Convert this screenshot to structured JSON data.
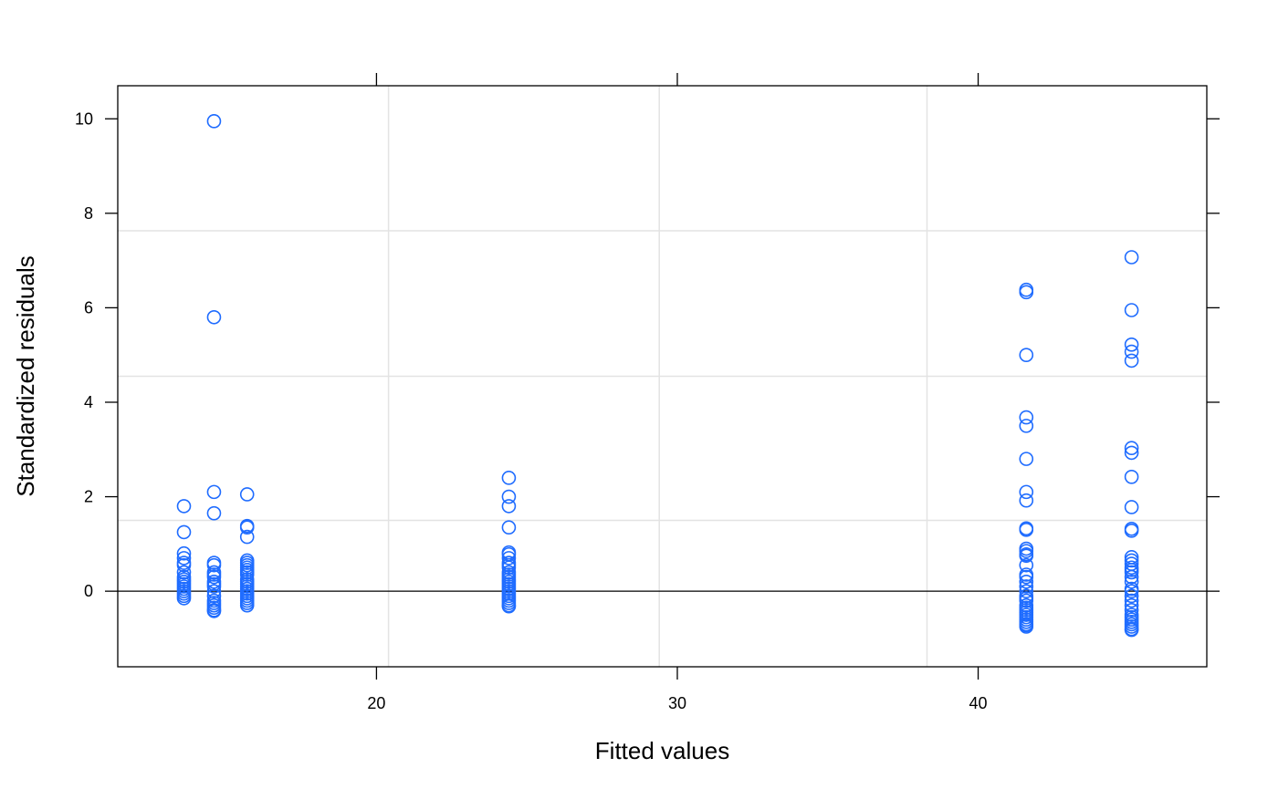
{
  "chart_data": {
    "type": "scatter",
    "title": "",
    "xlabel": "Fitted values",
    "ylabel": "Standardized residuals",
    "xlim": [
      11.4,
      47.6
    ],
    "ylim": [
      -1.6,
      10.7
    ],
    "xticks": [
      20,
      30,
      40
    ],
    "yticks": [
      0,
      2,
      4,
      6,
      8,
      10
    ],
    "xtick_labels": [
      "20",
      "30",
      "40"
    ],
    "ytick_labels": [
      "0",
      "2",
      "4",
      "6",
      "8",
      "10"
    ],
    "grid_x": [
      20.4,
      29.4,
      38.3
    ],
    "grid_y": [
      1.5,
      4.55,
      7.63
    ],
    "reference_line_y": 0,
    "point_color": "#1f6cff",
    "grid_color": "#e3e3e3",
    "series": [
      {
        "points": [
          [
            13.6,
            1.8
          ],
          [
            13.6,
            1.25
          ],
          [
            13.6,
            0.8
          ],
          [
            13.6,
            0.7
          ],
          [
            13.6,
            0.6
          ],
          [
            13.6,
            0.55
          ],
          [
            13.6,
            0.4
          ],
          [
            13.6,
            0.3
          ],
          [
            13.6,
            0.25
          ],
          [
            13.6,
            0.2
          ],
          [
            13.6,
            0.15
          ],
          [
            13.6,
            0.1
          ],
          [
            13.6,
            0.05
          ],
          [
            13.6,
            0.0
          ],
          [
            13.6,
            -0.05
          ],
          [
            13.6,
            -0.1
          ],
          [
            13.6,
            -0.15
          ],
          [
            14.6,
            9.95
          ],
          [
            14.6,
            5.8
          ],
          [
            14.6,
            2.1
          ],
          [
            14.6,
            1.65
          ],
          [
            14.6,
            0.6
          ],
          [
            14.6,
            0.55
          ],
          [
            14.6,
            0.4
          ],
          [
            14.6,
            0.35
          ],
          [
            14.6,
            0.3
          ],
          [
            14.6,
            0.2
          ],
          [
            14.6,
            0.15
          ],
          [
            14.6,
            0.1
          ],
          [
            14.6,
            0.0
          ],
          [
            14.6,
            -0.1
          ],
          [
            14.6,
            -0.2
          ],
          [
            14.6,
            -0.25
          ],
          [
            14.6,
            -0.3
          ],
          [
            14.6,
            -0.35
          ],
          [
            14.6,
            -0.4
          ],
          [
            14.6,
            -0.42
          ],
          [
            15.7,
            2.05
          ],
          [
            15.7,
            1.38
          ],
          [
            15.7,
            1.35
          ],
          [
            15.7,
            1.15
          ],
          [
            15.7,
            0.65
          ],
          [
            15.7,
            0.6
          ],
          [
            15.7,
            0.55
          ],
          [
            15.7,
            0.5
          ],
          [
            15.7,
            0.45
          ],
          [
            15.7,
            0.4
          ],
          [
            15.7,
            0.35
          ],
          [
            15.7,
            0.25
          ],
          [
            15.7,
            0.2
          ],
          [
            15.7,
            0.15
          ],
          [
            15.7,
            0.1
          ],
          [
            15.7,
            0.05
          ],
          [
            15.7,
            0.0
          ],
          [
            15.7,
            -0.05
          ],
          [
            15.7,
            -0.1
          ],
          [
            15.7,
            -0.15
          ],
          [
            15.7,
            -0.2
          ],
          [
            15.7,
            -0.25
          ],
          [
            15.7,
            -0.3
          ],
          [
            24.4,
            2.4
          ],
          [
            24.4,
            2.0
          ],
          [
            24.4,
            1.8
          ],
          [
            24.4,
            1.35
          ],
          [
            24.4,
            0.82
          ],
          [
            24.4,
            0.78
          ],
          [
            24.4,
            0.7
          ],
          [
            24.4,
            0.6
          ],
          [
            24.4,
            0.55
          ],
          [
            24.4,
            0.5
          ],
          [
            24.4,
            0.4
          ],
          [
            24.4,
            0.35
          ],
          [
            24.4,
            0.3
          ],
          [
            24.4,
            0.25
          ],
          [
            24.4,
            0.2
          ],
          [
            24.4,
            0.15
          ],
          [
            24.4,
            0.1
          ],
          [
            24.4,
            0.05
          ],
          [
            24.4,
            0.0
          ],
          [
            24.4,
            -0.05
          ],
          [
            24.4,
            -0.1
          ],
          [
            24.4,
            -0.15
          ],
          [
            24.4,
            -0.2
          ],
          [
            24.4,
            -0.25
          ],
          [
            24.4,
            -0.3
          ],
          [
            24.4,
            -0.32
          ],
          [
            41.6,
            6.38
          ],
          [
            41.6,
            6.33
          ],
          [
            41.6,
            5.0
          ],
          [
            41.6,
            3.68
          ],
          [
            41.6,
            3.5
          ],
          [
            41.6,
            2.8
          ],
          [
            41.6,
            2.1
          ],
          [
            41.6,
            1.92
          ],
          [
            41.6,
            1.33
          ],
          [
            41.6,
            1.3
          ],
          [
            41.6,
            0.9
          ],
          [
            41.6,
            0.85
          ],
          [
            41.6,
            0.78
          ],
          [
            41.6,
            0.75
          ],
          [
            41.6,
            0.55
          ],
          [
            41.6,
            0.35
          ],
          [
            41.6,
            0.3
          ],
          [
            41.6,
            0.2
          ],
          [
            41.6,
            0.1
          ],
          [
            41.6,
            0.0
          ],
          [
            41.6,
            -0.1
          ],
          [
            41.6,
            -0.15
          ],
          [
            41.6,
            -0.2
          ],
          [
            41.6,
            -0.3
          ],
          [
            41.6,
            -0.35
          ],
          [
            41.6,
            -0.4
          ],
          [
            41.6,
            -0.45
          ],
          [
            41.6,
            -0.5
          ],
          [
            41.6,
            -0.55
          ],
          [
            41.6,
            -0.6
          ],
          [
            41.6,
            -0.65
          ],
          [
            41.6,
            -0.7
          ],
          [
            41.6,
            -0.72
          ],
          [
            41.6,
            -0.75
          ],
          [
            45.1,
            7.07
          ],
          [
            45.1,
            5.95
          ],
          [
            45.1,
            5.22
          ],
          [
            45.1,
            5.07
          ],
          [
            45.1,
            4.88
          ],
          [
            45.1,
            3.03
          ],
          [
            45.1,
            2.93
          ],
          [
            45.1,
            2.42
          ],
          [
            45.1,
            1.78
          ],
          [
            45.1,
            1.32
          ],
          [
            45.1,
            1.28
          ],
          [
            45.1,
            0.72
          ],
          [
            45.1,
            0.65
          ],
          [
            45.1,
            0.58
          ],
          [
            45.1,
            0.5
          ],
          [
            45.1,
            0.45
          ],
          [
            45.1,
            0.4
          ],
          [
            45.1,
            0.3
          ],
          [
            45.1,
            0.2
          ],
          [
            45.1,
            0.05
          ],
          [
            45.1,
            0.0
          ],
          [
            45.1,
            -0.1
          ],
          [
            45.1,
            -0.2
          ],
          [
            45.1,
            -0.3
          ],
          [
            45.1,
            -0.4
          ],
          [
            45.1,
            -0.5
          ],
          [
            45.1,
            -0.55
          ],
          [
            45.1,
            -0.6
          ],
          [
            45.1,
            -0.65
          ],
          [
            45.1,
            -0.7
          ],
          [
            45.1,
            -0.75
          ],
          [
            45.1,
            -0.8
          ],
          [
            45.1,
            -0.82
          ]
        ]
      }
    ]
  }
}
